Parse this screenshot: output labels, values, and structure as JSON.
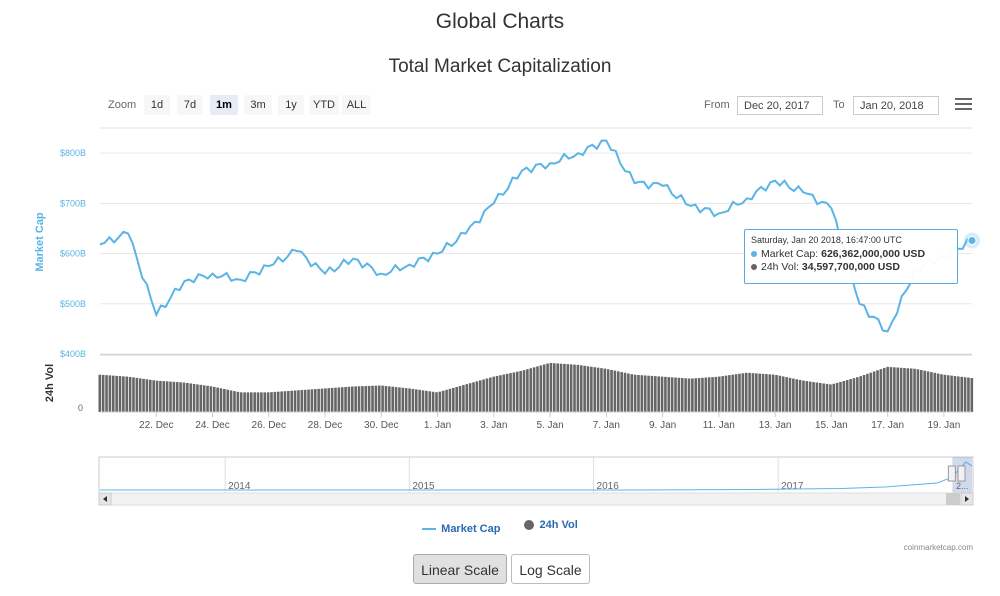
{
  "page_title": "Global Charts",
  "chart_title": "Total Market Capitalization",
  "toolbar": {
    "zoom_label": "Zoom",
    "zoom_buttons": [
      "1d",
      "7d",
      "1m",
      "3m",
      "1y",
      "YTD",
      "ALL"
    ],
    "active_zoom": "1m",
    "from_label": "From",
    "from_value": "Dec 20, 2017",
    "to_label": "To",
    "to_value": "Jan 20, 2018",
    "menu_icon": "hamburger-menu-icon"
  },
  "tooltip": {
    "date": "Saturday, Jan 20 2018, 16:47:00 UTC",
    "market_cap_label": "Market Cap:",
    "market_cap_value": "626,362,000,000 USD",
    "volume_label": "24h Vol:",
    "volume_value": "34,597,700,000 USD"
  },
  "legend": {
    "market_cap": "Market Cap",
    "volume": "24h Vol"
  },
  "credit": "coinmarketcap.com",
  "scale_buttons": {
    "linear": "Linear Scale",
    "log": "Log Scale",
    "active": "linear"
  },
  "colors": {
    "market_cap_line": "#5ab4e5",
    "volume_bars": "#666666",
    "axis_label": "#5ab4e5"
  },
  "chart_data": {
    "type": "line",
    "title": "Total Market Capitalization",
    "series": [
      {
        "name": "Market Cap",
        "unit": "USD (billions)",
        "x": [
          "2017-12-20",
          "2017-12-21",
          "2017-12-22",
          "2017-12-23",
          "2017-12-24",
          "2017-12-25",
          "2017-12-26",
          "2017-12-27",
          "2017-12-28",
          "2017-12-29",
          "2017-12-30",
          "2017-12-31",
          "2018-01-01",
          "2018-01-02",
          "2018-01-03",
          "2018-01-04",
          "2018-01-05",
          "2018-01-06",
          "2018-01-07",
          "2018-01-08",
          "2018-01-09",
          "2018-01-10",
          "2018-01-11",
          "2018-01-12",
          "2018-01-13",
          "2018-01-14",
          "2018-01-15",
          "2018-01-16",
          "2018-01-17",
          "2018-01-18",
          "2018-01-19",
          "2018-01-20"
        ],
        "values": [
          618,
          640,
          478,
          545,
          560,
          548,
          575,
          605,
          560,
          590,
          560,
          578,
          600,
          640,
          700,
          765,
          780,
          800,
          825,
          740,
          735,
          695,
          680,
          710,
          745,
          722,
          690,
          500,
          445,
          570,
          595,
          626
        ]
      },
      {
        "name": "24h Vol",
        "unit": "USD (billions)",
        "x": [
          "2017-12-20",
          "2017-12-21",
          "2017-12-22",
          "2017-12-23",
          "2017-12-24",
          "2017-12-25",
          "2017-12-26",
          "2017-12-27",
          "2017-12-28",
          "2017-12-29",
          "2017-12-30",
          "2017-12-31",
          "2018-01-01",
          "2018-01-02",
          "2018-01-03",
          "2018-01-04",
          "2018-01-05",
          "2018-01-06",
          "2018-01-07",
          "2018-01-08",
          "2018-01-09",
          "2018-01-10",
          "2018-01-11",
          "2018-01-12",
          "2018-01-13",
          "2018-01-14",
          "2018-01-15",
          "2018-01-16",
          "2018-01-17",
          "2018-01-18",
          "2018-01-19",
          "2018-01-20"
        ],
        "values": [
          38,
          36,
          32,
          30,
          26,
          20,
          20,
          22,
          24,
          26,
          27,
          24,
          20,
          28,
          36,
          42,
          50,
          48,
          44,
          38,
          36,
          34,
          36,
          40,
          38,
          32,
          28,
          36,
          46,
          44,
          38,
          34.6
        ]
      }
    ],
    "x_tick_labels": [
      "22. Dec",
      "24. Dec",
      "26. Dec",
      "28. Dec",
      "30. Dec",
      "1. Jan",
      "3. Jan",
      "5. Jan",
      "7. Jan",
      "9. Jan",
      "11. Jan",
      "13. Jan",
      "15. Jan",
      "17. Jan",
      "19. Jan"
    ],
    "x_tick_dates": [
      "2017-12-22",
      "2017-12-24",
      "2017-12-26",
      "2017-12-28",
      "2017-12-30",
      "2018-01-01",
      "2018-01-03",
      "2018-01-05",
      "2018-01-07",
      "2018-01-09",
      "2018-01-11",
      "2018-01-13",
      "2018-01-15",
      "2018-01-17",
      "2018-01-19"
    ],
    "y_axis": {
      "label": "Market Cap",
      "tick_labels": [
        "$800B",
        "$700B",
        "$600B",
        "$500B",
        "$400B"
      ],
      "ticks": [
        800,
        700,
        600,
        500,
        400
      ],
      "ylim": [
        400,
        850
      ]
    },
    "volume_axis": {
      "label": "24h Vol",
      "tick_label": "0"
    },
    "navigator": {
      "year_labels": [
        "2014",
        "2015",
        "2016",
        "2017"
      ],
      "year_starts": [
        "2014-01-01",
        "2015-01-01",
        "2016-01-01",
        "2017-01-01"
      ],
      "range_start": "2013-04-28",
      "range_end": "2018-01-20",
      "selected_start": "2017-12-20",
      "selected_end": "2018-01-20",
      "truncated_label": "2..."
    },
    "legend_position": "bottom-center",
    "grid": true
  }
}
